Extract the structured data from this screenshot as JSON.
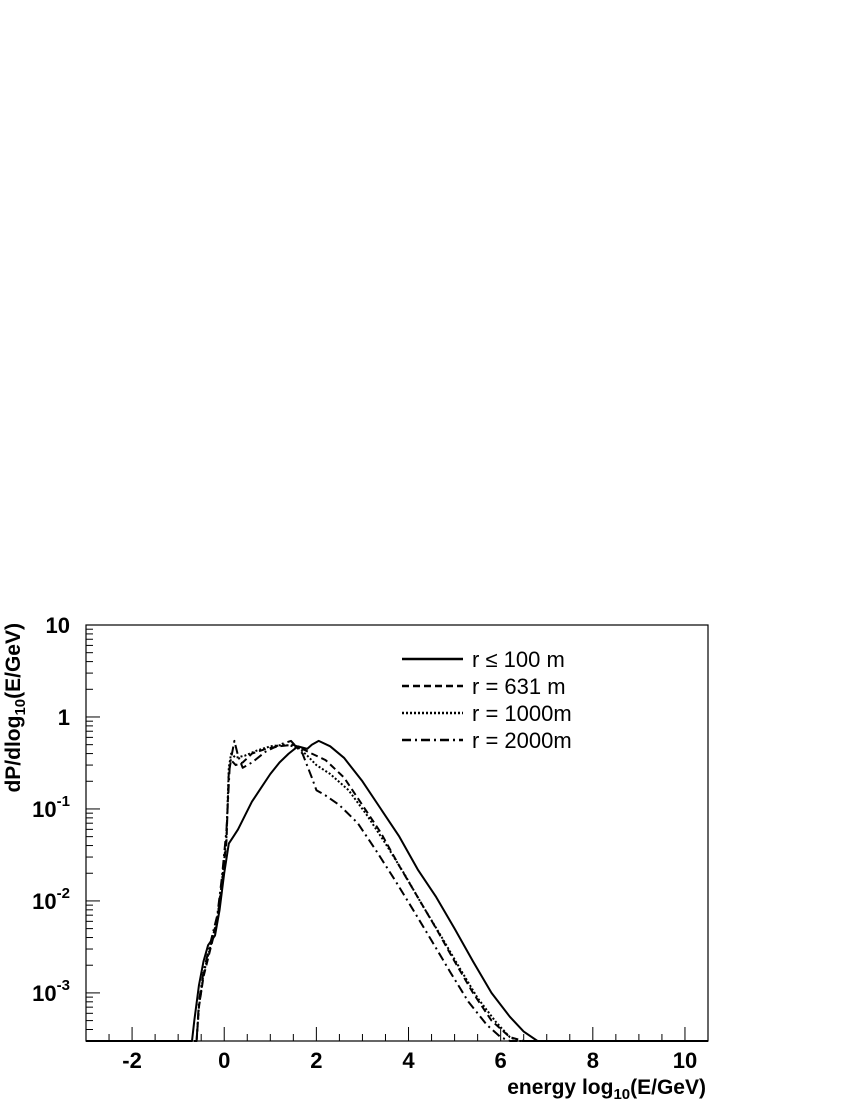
{
  "chart_data": {
    "type": "line",
    "xlabel": {
      "main": "energy log",
      "sub": "10",
      "tail": "(E/GeV)"
    },
    "ylabel": {
      "main": "dP/dlog",
      "sub": "10",
      "tail": "(E/GeV)"
    },
    "x_scale": "linear",
    "y_scale": "log",
    "xlim": [
      -3,
      10.5
    ],
    "ylim": [
      0.0003,
      10
    ],
    "x_ticks": [
      {
        "value": -2,
        "label": "-2"
      },
      {
        "value": 0,
        "label": "0"
      },
      {
        "value": 2,
        "label": "2"
      },
      {
        "value": 4,
        "label": "4"
      },
      {
        "value": 6,
        "label": "6"
      },
      {
        "value": 8,
        "label": "8"
      },
      {
        "value": 10,
        "label": "10"
      }
    ],
    "y_ticks": [
      {
        "value": 10,
        "base": "10",
        "exp": ""
      },
      {
        "value": 1,
        "base": "1",
        "exp": ""
      },
      {
        "value": 0.1,
        "base": "10",
        "exp": "-1"
      },
      {
        "value": 0.01,
        "base": "10",
        "exp": "-2"
      },
      {
        "value": 0.001,
        "base": "10",
        "exp": "-3"
      }
    ],
    "legend_position": "top-right",
    "series": [
      {
        "name": "r ≤ 100 m",
        "style": "solid",
        "points": [
          [
            -3,
            0.0003
          ],
          [
            -0.7,
            0.0003
          ],
          [
            -0.65,
            0.0005
          ],
          [
            -0.55,
            0.0012
          ],
          [
            -0.45,
            0.0022
          ],
          [
            -0.35,
            0.0033
          ],
          [
            -0.2,
            0.0042
          ],
          [
            -0.1,
            0.008
          ],
          [
            0.0,
            0.02
          ],
          [
            0.1,
            0.042
          ],
          [
            0.2,
            0.05
          ],
          [
            0.3,
            0.06
          ],
          [
            0.45,
            0.085
          ],
          [
            0.6,
            0.12
          ],
          [
            0.8,
            0.17
          ],
          [
            1.0,
            0.24
          ],
          [
            1.2,
            0.32
          ],
          [
            1.4,
            0.4
          ],
          [
            1.6,
            0.48
          ],
          [
            1.8,
            0.45
          ],
          [
            1.9,
            0.5
          ],
          [
            2.05,
            0.55
          ],
          [
            2.3,
            0.48
          ],
          [
            2.6,
            0.36
          ],
          [
            3.0,
            0.2
          ],
          [
            3.4,
            0.1
          ],
          [
            3.8,
            0.05
          ],
          [
            4.2,
            0.022
          ],
          [
            4.6,
            0.011
          ],
          [
            5.0,
            0.005
          ],
          [
            5.4,
            0.0022
          ],
          [
            5.8,
            0.001
          ],
          [
            6.2,
            0.00055
          ],
          [
            6.5,
            0.00038
          ],
          [
            6.8,
            0.0003
          ],
          [
            10.5,
            0.0003
          ]
        ]
      },
      {
        "name": "r = 631 m",
        "style": "dashed",
        "points": [
          [
            -3,
            0.0003
          ],
          [
            -0.6,
            0.0003
          ],
          [
            -0.55,
            0.0007
          ],
          [
            -0.45,
            0.0015
          ],
          [
            -0.3,
            0.003
          ],
          [
            -0.15,
            0.006
          ],
          [
            -0.05,
            0.015
          ],
          [
            0.05,
            0.045
          ],
          [
            0.1,
            0.25
          ],
          [
            0.15,
            0.34
          ],
          [
            0.25,
            0.3
          ],
          [
            0.4,
            0.32
          ],
          [
            0.6,
            0.4
          ],
          [
            0.9,
            0.45
          ],
          [
            1.2,
            0.48
          ],
          [
            1.5,
            0.5
          ],
          [
            1.7,
            0.45
          ],
          [
            1.9,
            0.4
          ],
          [
            2.2,
            0.34
          ],
          [
            2.6,
            0.22
          ],
          [
            3.0,
            0.11
          ],
          [
            3.4,
            0.055
          ],
          [
            3.8,
            0.024
          ],
          [
            4.2,
            0.011
          ],
          [
            4.6,
            0.005
          ],
          [
            5.0,
            0.0022
          ],
          [
            5.4,
            0.001
          ],
          [
            5.8,
            0.0005
          ],
          [
            6.2,
            0.00033
          ],
          [
            6.5,
            0.0003
          ],
          [
            10.5,
            0.0003
          ]
        ]
      },
      {
        "name": "r = 1000m",
        "style": "dotted",
        "points": [
          [
            -3,
            0.0003
          ],
          [
            -0.6,
            0.0003
          ],
          [
            -0.55,
            0.0007
          ],
          [
            -0.45,
            0.0016
          ],
          [
            -0.3,
            0.0032
          ],
          [
            -0.15,
            0.0065
          ],
          [
            -0.05,
            0.016
          ],
          [
            0.05,
            0.05
          ],
          [
            0.1,
            0.28
          ],
          [
            0.15,
            0.4
          ],
          [
            0.25,
            0.36
          ],
          [
            0.45,
            0.38
          ],
          [
            0.7,
            0.43
          ],
          [
            1.0,
            0.48
          ],
          [
            1.3,
            0.5
          ],
          [
            1.6,
            0.47
          ],
          [
            1.8,
            0.38
          ],
          [
            2.0,
            0.3
          ],
          [
            2.3,
            0.24
          ],
          [
            2.7,
            0.16
          ],
          [
            3.1,
            0.085
          ],
          [
            3.5,
            0.042
          ],
          [
            3.9,
            0.02
          ],
          [
            4.3,
            0.009
          ],
          [
            4.7,
            0.0042
          ],
          [
            5.1,
            0.0019
          ],
          [
            5.5,
            0.00088
          ],
          [
            5.9,
            0.00048
          ],
          [
            6.2,
            0.00033
          ],
          [
            6.4,
            0.0003
          ],
          [
            10.5,
            0.0003
          ]
        ]
      },
      {
        "name": "r = 2000m",
        "style": "dashdot",
        "points": [
          [
            -3,
            0.0003
          ],
          [
            -0.6,
            0.0003
          ],
          [
            -0.55,
            0.0008
          ],
          [
            -0.45,
            0.0017
          ],
          [
            -0.3,
            0.0035
          ],
          [
            -0.15,
            0.007
          ],
          [
            -0.05,
            0.018
          ],
          [
            0.05,
            0.06
          ],
          [
            0.12,
            0.3
          ],
          [
            0.22,
            0.55
          ],
          [
            0.3,
            0.38
          ],
          [
            0.4,
            0.28
          ],
          [
            0.6,
            0.32
          ],
          [
            0.9,
            0.42
          ],
          [
            1.2,
            0.5
          ],
          [
            1.45,
            0.55
          ],
          [
            1.7,
            0.4
          ],
          [
            1.9,
            0.22
          ],
          [
            2.0,
            0.16
          ],
          [
            2.2,
            0.14
          ],
          [
            2.5,
            0.11
          ],
          [
            2.9,
            0.07
          ],
          [
            3.3,
            0.035
          ],
          [
            3.7,
            0.017
          ],
          [
            4.1,
            0.008
          ],
          [
            4.5,
            0.0037
          ],
          [
            4.9,
            0.0017
          ],
          [
            5.3,
            0.0008
          ],
          [
            5.7,
            0.00045
          ],
          [
            6.0,
            0.00033
          ],
          [
            6.2,
            0.0003
          ],
          [
            10.5,
            0.0003
          ]
        ]
      }
    ]
  }
}
